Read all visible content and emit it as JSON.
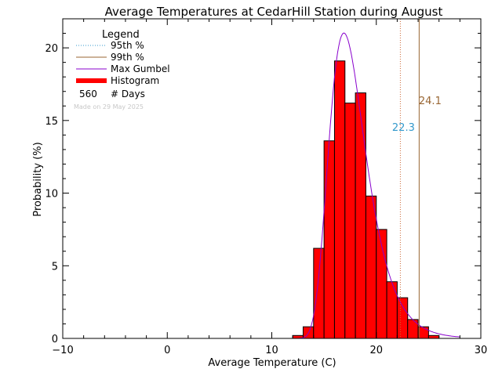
{
  "chart_data": {
    "type": "bar",
    "title": "Average Temperatures at CedarHill Station during August",
    "xlabel": "Average Temperature (C)",
    "ylabel": "Probability (%)",
    "xlim": [
      -10,
      30
    ],
    "ylim": [
      0,
      22
    ],
    "x_ticks": [
      "−10",
      "0",
      "10",
      "20",
      "30"
    ],
    "x_tick_values": [
      -10,
      0,
      10,
      20,
      30
    ],
    "y_ticks": [
      "0",
      "5",
      "10",
      "15",
      "20"
    ],
    "y_tick_values": [
      0,
      5,
      10,
      15,
      20
    ],
    "bin_width": 1,
    "histogram": {
      "name": "Histogram",
      "color": "#ff0000",
      "bins": [
        {
          "x0": 12,
          "value": 0.2
        },
        {
          "x0": 13,
          "value": 0.8
        },
        {
          "x0": 14,
          "value": 6.2
        },
        {
          "x0": 15,
          "value": 13.6
        },
        {
          "x0": 16,
          "value": 19.1
        },
        {
          "x0": 17,
          "value": 16.2
        },
        {
          "x0": 18,
          "value": 16.9
        },
        {
          "x0": 19,
          "value": 9.8
        },
        {
          "x0": 20,
          "value": 7.5
        },
        {
          "x0": 21,
          "value": 3.9
        },
        {
          "x0": 22,
          "value": 2.8
        },
        {
          "x0": 23,
          "value": 1.3
        },
        {
          "x0": 24,
          "value": 0.8
        },
        {
          "x0": 25,
          "value": 0.2
        }
      ]
    },
    "gumbel": {
      "name": "Max Gumbel",
      "color": "#8800cc",
      "mu": 16.9,
      "beta": 1.75,
      "scale": 100,
      "x_range": [
        12.5,
        28
      ]
    },
    "p95": {
      "name": "95th %",
      "value": 22.3,
      "label": "22.3",
      "color": "#3399cc"
    },
    "p99": {
      "name": "99th %",
      "value": 24.1,
      "label": "24.1",
      "color": "#996633"
    },
    "legend": {
      "title": "Legend",
      "placement": "top-left",
      "entries": [
        {
          "style": "dotted",
          "color": "#3399cc",
          "label": "95th %"
        },
        {
          "style": "solid",
          "color": "#996633",
          "label": "99th %"
        },
        {
          "style": "solid",
          "color": "#8800cc",
          "label": "Max Gumbel"
        },
        {
          "style": "thick",
          "color": "#ff0000",
          "label": "Histogram"
        }
      ],
      "count_value": "560",
      "count_label": "# Days"
    },
    "made_on": "Made on 29 May 2025"
  }
}
